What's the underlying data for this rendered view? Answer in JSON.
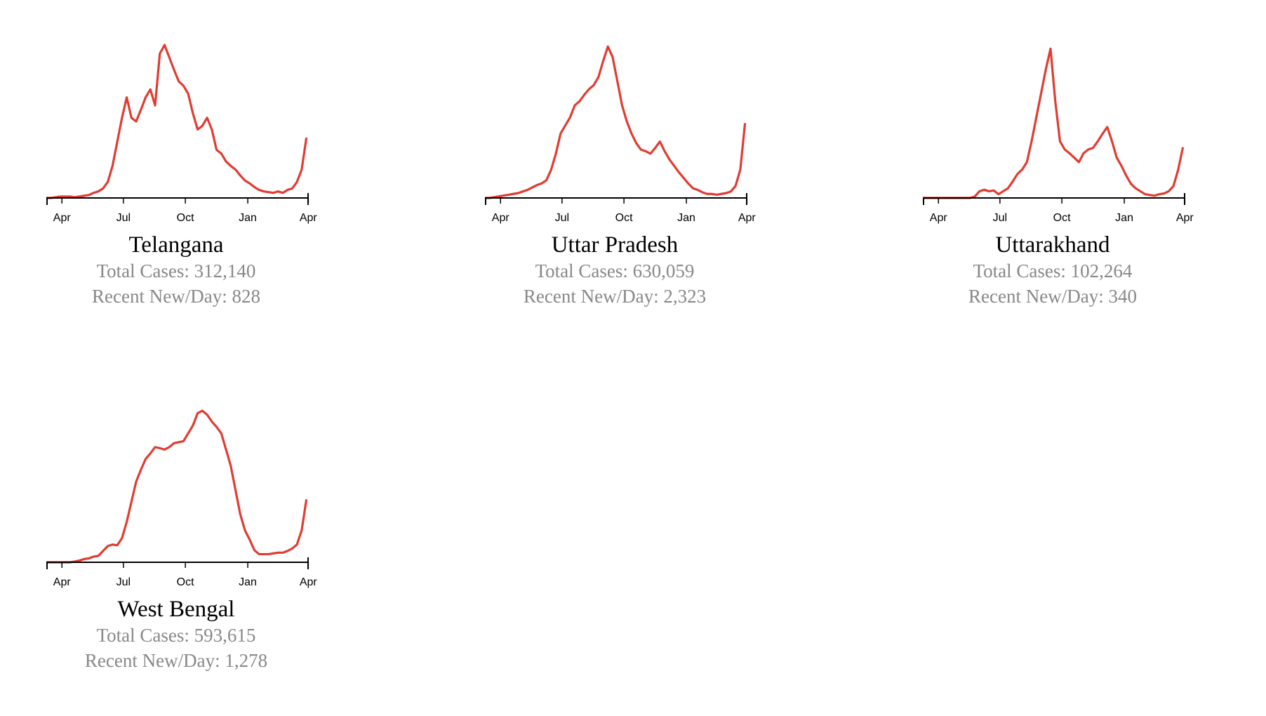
{
  "chart_data": [
    {
      "type": "line",
      "title": "Telangana",
      "subtitle": "Total Cases: 312,140",
      "note": "Recent New/Day: 828",
      "color": "#e03c31",
      "values": [
        0,
        0,
        10,
        20,
        20,
        20,
        10,
        20,
        30,
        40,
        70,
        90,
        130,
        220,
        440,
        770,
        1100,
        1380,
        1100,
        1050,
        1210,
        1380,
        1490,
        1270,
        1980,
        2100,
        1930,
        1760,
        1600,
        1540,
        1430,
        1160,
        940,
        990,
        1100,
        940,
        660,
        610,
        500,
        440,
        390,
        310,
        240,
        200,
        150,
        110,
        90,
        80,
        70,
        90,
        70,
        110,
        130,
        220,
        390,
        828
      ],
      "ylim": [
        0,
        2100
      ],
      "xlim": [
        0,
        55.5
      ],
      "xticks": [
        {
          "value": 3.3,
          "label": "Apr"
        },
        {
          "value": 16.3,
          "label": "Jul"
        },
        {
          "value": 29.4,
          "label": "Oct"
        },
        {
          "value": 42.6,
          "label": "Jan"
        },
        {
          "value": 55.4,
          "label": "Apr"
        }
      ]
    },
    {
      "type": "line",
      "title": "Uttar Pradesh",
      "subtitle": "Total Cases: 630,059",
      "note": "Recent New/Day: 2,323",
      "color": "#e03c31",
      "values": [
        0,
        0,
        25,
        50,
        75,
        100,
        125,
        150,
        200,
        250,
        325,
        400,
        450,
        550,
        875,
        1375,
        2000,
        2250,
        2500,
        2875,
        3000,
        3200,
        3375,
        3500,
        3750,
        4250,
        4700,
        4375,
        3625,
        2875,
        2375,
        2000,
        1700,
        1500,
        1450,
        1375,
        1550,
        1750,
        1450,
        1200,
        1000,
        800,
        625,
        450,
        300,
        250,
        175,
        125,
        125,
        100,
        125,
        150,
        200,
        375,
        875,
        2323
      ],
      "ylim": [
        0,
        4750
      ],
      "xlim": [
        0,
        55.5
      ],
      "xticks": [
        {
          "value": 3.3,
          "label": "Apr"
        },
        {
          "value": 16.3,
          "label": "Jul"
        },
        {
          "value": 29.4,
          "label": "Oct"
        },
        {
          "value": 42.6,
          "label": "Jan"
        },
        {
          "value": 55.4,
          "label": "Apr"
        }
      ]
    },
    {
      "type": "line",
      "title": "Uttarakhand",
      "subtitle": "Total Cases: 102,264",
      "note": "Recent New/Day: 340",
      "color": "#e03c31",
      "values": [
        0,
        0,
        0,
        0,
        0,
        0,
        0,
        0,
        0,
        0,
        0,
        10,
        45,
        55,
        45,
        50,
        25,
        45,
        65,
        110,
        160,
        190,
        240,
        380,
        540,
        700,
        860,
        1000,
        650,
        380,
        325,
        300,
        270,
        240,
        300,
        325,
        335,
        380,
        430,
        475,
        380,
        270,
        215,
        150,
        95,
        65,
        45,
        25,
        20,
        15,
        25,
        30,
        45,
        80,
        190,
        340
      ],
      "ylim": [
        0,
        1025
      ],
      "xlim": [
        0,
        55.5
      ],
      "xticks": [
        {
          "value": 3.3,
          "label": "Apr"
        },
        {
          "value": 16.3,
          "label": "Jul"
        },
        {
          "value": 29.4,
          "label": "Oct"
        },
        {
          "value": 42.6,
          "label": "Jan"
        },
        {
          "value": 55.4,
          "label": "Apr"
        }
      ]
    },
    {
      "type": "line",
      "title": "West Bengal",
      "subtitle": "Total Cases: 593,615",
      "note": "Recent New/Day: 1,278",
      "color": "#e03c31",
      "values": [
        0,
        0,
        0,
        0,
        0,
        0,
        15,
        35,
        65,
        80,
        115,
        130,
        230,
        330,
        360,
        345,
        490,
        820,
        1230,
        1640,
        1880,
        2100,
        2210,
        2340,
        2320,
        2290,
        2340,
        2420,
        2440,
        2460,
        2620,
        2780,
        3030,
        3080,
        3000,
        2860,
        2750,
        2620,
        2290,
        1960,
        1470,
        980,
        650,
        460,
        245,
        165,
        165,
        165,
        180,
        195,
        195,
        230,
        280,
        360,
        650,
        1278
      ],
      "ylim": [
        0,
        3110
      ],
      "xlim": [
        0,
        55.5
      ],
      "xticks": [
        {
          "value": 3.3,
          "label": "Apr"
        },
        {
          "value": 16.3,
          "label": "Jul"
        },
        {
          "value": 29.4,
          "label": "Oct"
        },
        {
          "value": 42.6,
          "label": "Jan"
        },
        {
          "value": 55.4,
          "label": "Apr"
        }
      ]
    }
  ]
}
